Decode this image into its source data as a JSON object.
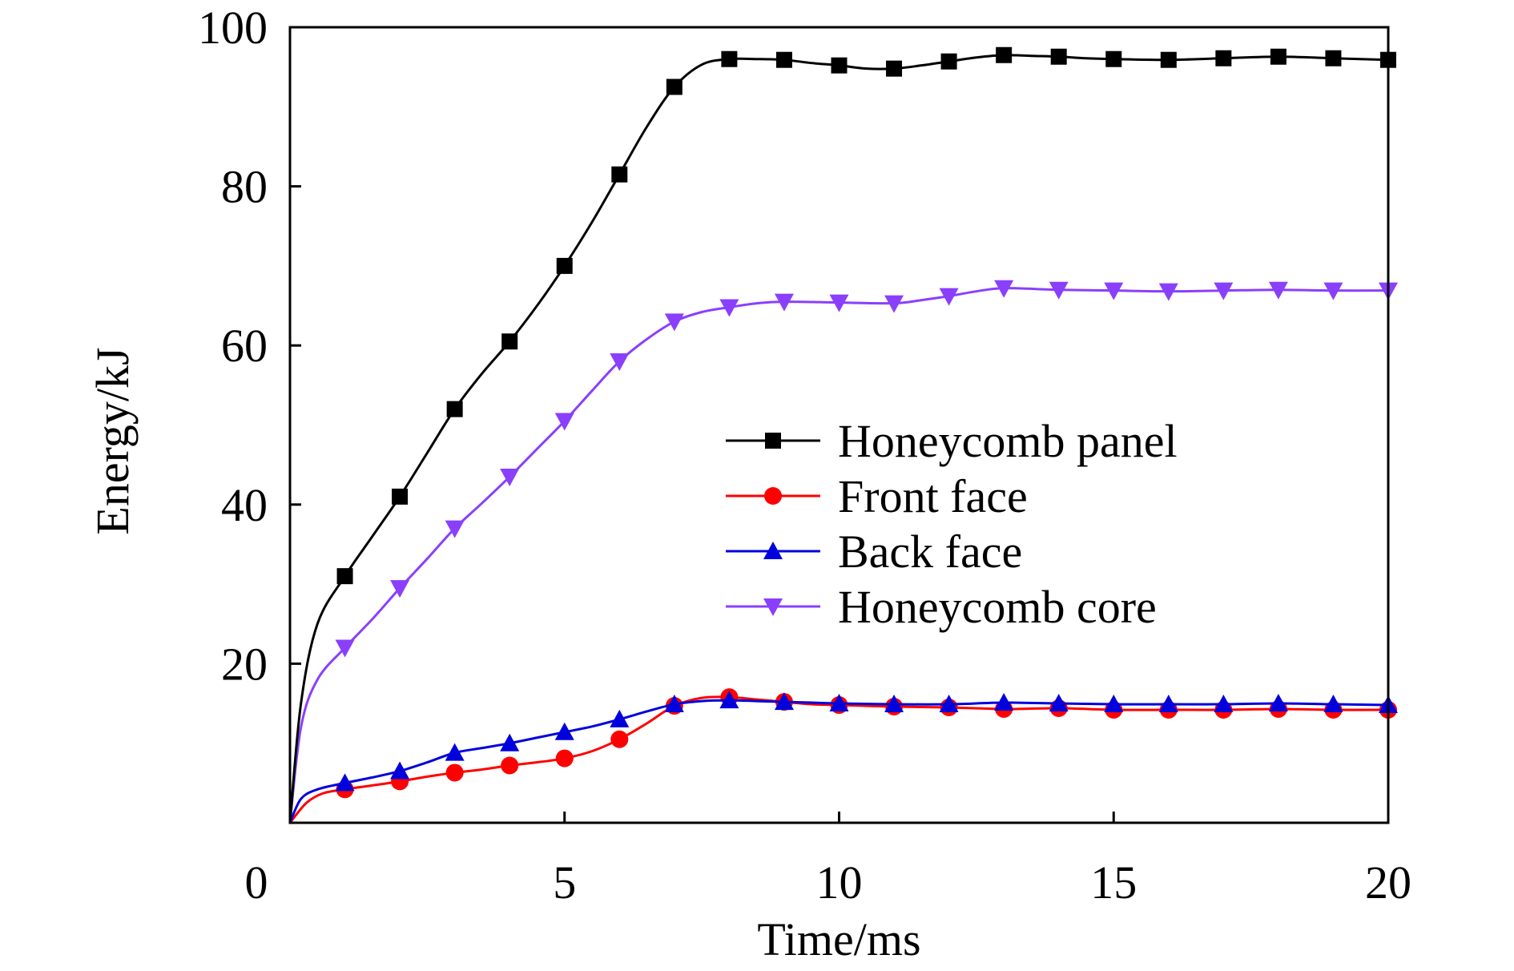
{
  "chart_data": {
    "type": "line",
    "xlabel": "Time/ms",
    "ylabel": "Energy/kJ",
    "xlim": [
      0,
      20
    ],
    "ylim": [
      0,
      100
    ],
    "xticks": [
      0,
      5,
      10,
      15,
      20
    ],
    "yticks": [
      20,
      40,
      60,
      80,
      100
    ],
    "grid": false,
    "legend_position": "center-right",
    "series": [
      {
        "name": "Honeycomb panel",
        "color": "#000000",
        "marker": "square",
        "line": [
          [
            0,
            0
          ],
          [
            0.2,
            15
          ],
          [
            0.5,
            25
          ],
          [
            1,
            31
          ],
          [
            1.5,
            36
          ],
          [
            2,
            41
          ],
          [
            2.5,
            46.5
          ],
          [
            3,
            52
          ],
          [
            3.5,
            56.5
          ],
          [
            4,
            60.5
          ],
          [
            4.5,
            65
          ],
          [
            5,
            70
          ],
          [
            5.5,
            75.5
          ],
          [
            6,
            81.5
          ],
          [
            6.5,
            87.5
          ],
          [
            7,
            92.5
          ],
          [
            7.5,
            95.3
          ],
          [
            8,
            96
          ],
          [
            8.5,
            96
          ],
          [
            9,
            95.9
          ],
          [
            9.5,
            95.5
          ],
          [
            10,
            95.2
          ],
          [
            10.5,
            94.8
          ],
          [
            11,
            94.8
          ],
          [
            11.5,
            95.2
          ],
          [
            12,
            95.7
          ],
          [
            12.5,
            96.2
          ],
          [
            13,
            96.5
          ],
          [
            13.5,
            96.4
          ],
          [
            14,
            96.3
          ],
          [
            14.5,
            96.1
          ],
          [
            15,
            96
          ],
          [
            16,
            95.9
          ],
          [
            17,
            96.1
          ],
          [
            18,
            96.3
          ],
          [
            19,
            96.1
          ],
          [
            20,
            95.9
          ]
        ],
        "markers": [
          [
            1,
            31
          ],
          [
            2,
            41
          ],
          [
            3,
            52
          ],
          [
            4,
            60.5
          ],
          [
            5,
            70
          ],
          [
            6,
            81.5
          ],
          [
            7,
            92.5
          ],
          [
            8,
            96
          ],
          [
            9,
            95.9
          ],
          [
            10,
            95.2
          ],
          [
            11,
            94.8
          ],
          [
            12,
            95.7
          ],
          [
            13,
            96.5
          ],
          [
            14,
            96.3
          ],
          [
            15,
            96
          ],
          [
            16,
            95.9
          ],
          [
            17,
            96.1
          ],
          [
            18,
            96.3
          ],
          [
            19,
            96.1
          ],
          [
            20,
            95.9
          ]
        ]
      },
      {
        "name": "Front face",
        "color": "#ff0000",
        "marker": "circle",
        "line": [
          [
            0,
            0
          ],
          [
            0.3,
            2.5
          ],
          [
            0.6,
            3.7
          ],
          [
            1,
            4.2
          ],
          [
            1.5,
            4.7
          ],
          [
            2,
            5.2
          ],
          [
            2.5,
            5.8
          ],
          [
            3,
            6.3
          ],
          [
            3.5,
            6.7
          ],
          [
            4,
            7.2
          ],
          [
            4.5,
            7.6
          ],
          [
            5,
            8.1
          ],
          [
            5.5,
            9
          ],
          [
            6,
            10.5
          ],
          [
            6.5,
            12.5
          ],
          [
            7,
            14.7
          ],
          [
            7.5,
            15.7
          ],
          [
            8,
            15.8
          ],
          [
            8.5,
            15.5
          ],
          [
            9,
            15.2
          ],
          [
            9.5,
            14.9
          ],
          [
            10,
            14.8
          ],
          [
            11,
            14.6
          ],
          [
            12,
            14.5
          ],
          [
            13,
            14.3
          ],
          [
            14,
            14.4
          ],
          [
            15,
            14.2
          ],
          [
            16,
            14.2
          ],
          [
            17,
            14.2
          ],
          [
            18,
            14.3
          ],
          [
            19,
            14.2
          ],
          [
            20,
            14.2
          ]
        ],
        "markers": [
          [
            1,
            4.2
          ],
          [
            2,
            5.2
          ],
          [
            3,
            6.3
          ],
          [
            4,
            7.2
          ],
          [
            5,
            8.1
          ],
          [
            6,
            10.5
          ],
          [
            7,
            14.7
          ],
          [
            8,
            15.8
          ],
          [
            9,
            15.2
          ],
          [
            10,
            14.8
          ],
          [
            11,
            14.6
          ],
          [
            12,
            14.5
          ],
          [
            13,
            14.3
          ],
          [
            14,
            14.4
          ],
          [
            15,
            14.2
          ],
          [
            16,
            14.2
          ],
          [
            17,
            14.2
          ],
          [
            18,
            14.3
          ],
          [
            19,
            14.2
          ],
          [
            20,
            14.2
          ]
        ]
      },
      {
        "name": "Back face",
        "color": "#0000dd",
        "marker": "triangle-up",
        "line": [
          [
            0,
            0
          ],
          [
            0.2,
            3
          ],
          [
            0.5,
            4.2
          ],
          [
            1,
            5
          ],
          [
            1.5,
            5.7
          ],
          [
            2,
            6.5
          ],
          [
            2.5,
            7.6
          ],
          [
            3,
            8.8
          ],
          [
            3.5,
            9.4
          ],
          [
            4,
            10
          ],
          [
            4.5,
            10.7
          ],
          [
            5,
            11.4
          ],
          [
            5.5,
            12.1
          ],
          [
            6,
            13
          ],
          [
            6.5,
            14
          ],
          [
            7,
            14.9
          ],
          [
            7.5,
            15.3
          ],
          [
            8,
            15.4
          ],
          [
            8.5,
            15.3
          ],
          [
            9,
            15.2
          ],
          [
            9.5,
            15.1
          ],
          [
            10,
            15
          ],
          [
            11,
            14.9
          ],
          [
            12,
            14.9
          ],
          [
            13,
            15.1
          ],
          [
            14,
            15
          ],
          [
            15,
            14.9
          ],
          [
            16,
            14.9
          ],
          [
            17,
            14.9
          ],
          [
            18,
            15
          ],
          [
            19,
            14.9
          ],
          [
            20,
            14.8
          ]
        ],
        "markers": [
          [
            1,
            5
          ],
          [
            2,
            6.5
          ],
          [
            3,
            8.8
          ],
          [
            4,
            10
          ],
          [
            5,
            11.4
          ],
          [
            6,
            13
          ],
          [
            7,
            14.9
          ],
          [
            8,
            15.4
          ],
          [
            9,
            15.2
          ],
          [
            10,
            15
          ],
          [
            11,
            14.9
          ],
          [
            12,
            14.9
          ],
          [
            13,
            15.1
          ],
          [
            14,
            15
          ],
          [
            15,
            14.9
          ],
          [
            16,
            14.9
          ],
          [
            17,
            14.9
          ],
          [
            18,
            15
          ],
          [
            19,
            14.9
          ],
          [
            20,
            14.8
          ]
        ]
      },
      {
        "name": "Honeycomb core",
        "color": "#8a3ffc",
        "marker": "triangle-down",
        "line": [
          [
            0,
            0
          ],
          [
            0.2,
            12
          ],
          [
            0.5,
            18
          ],
          [
            1,
            22
          ],
          [
            1.5,
            25.6
          ],
          [
            2,
            29.5
          ],
          [
            2.5,
            33.2
          ],
          [
            3,
            37
          ],
          [
            3.5,
            40.2
          ],
          [
            4,
            43.5
          ],
          [
            4.5,
            47
          ],
          [
            5,
            50.5
          ],
          [
            5.5,
            54.3
          ],
          [
            6,
            58
          ],
          [
            6.5,
            60.8
          ],
          [
            7,
            63
          ],
          [
            7.5,
            64.2
          ],
          [
            8,
            64.8
          ],
          [
            8.5,
            65.3
          ],
          [
            9,
            65.5
          ],
          [
            10,
            65.4
          ],
          [
            11,
            65.3
          ],
          [
            11.5,
            65.7
          ],
          [
            12,
            66.2
          ],
          [
            12.5,
            66.8
          ],
          [
            13,
            67.2
          ],
          [
            14,
            67
          ],
          [
            15,
            66.9
          ],
          [
            16,
            66.8
          ],
          [
            17,
            66.9
          ],
          [
            18,
            67
          ],
          [
            19,
            66.9
          ],
          [
            20,
            66.9
          ]
        ],
        "markers": [
          [
            1,
            22
          ],
          [
            2,
            29.5
          ],
          [
            3,
            37
          ],
          [
            4,
            43.5
          ],
          [
            5,
            50.5
          ],
          [
            6,
            58
          ],
          [
            7,
            63
          ],
          [
            8,
            64.8
          ],
          [
            9,
            65.5
          ],
          [
            10,
            65.4
          ],
          [
            11,
            65.3
          ],
          [
            12,
            66.2
          ],
          [
            13,
            67.2
          ],
          [
            14,
            67
          ],
          [
            15,
            66.9
          ],
          [
            16,
            66.8
          ],
          [
            17,
            66.9
          ],
          [
            18,
            67
          ],
          [
            19,
            66.9
          ],
          [
            20,
            66.9
          ]
        ]
      }
    ]
  }
}
